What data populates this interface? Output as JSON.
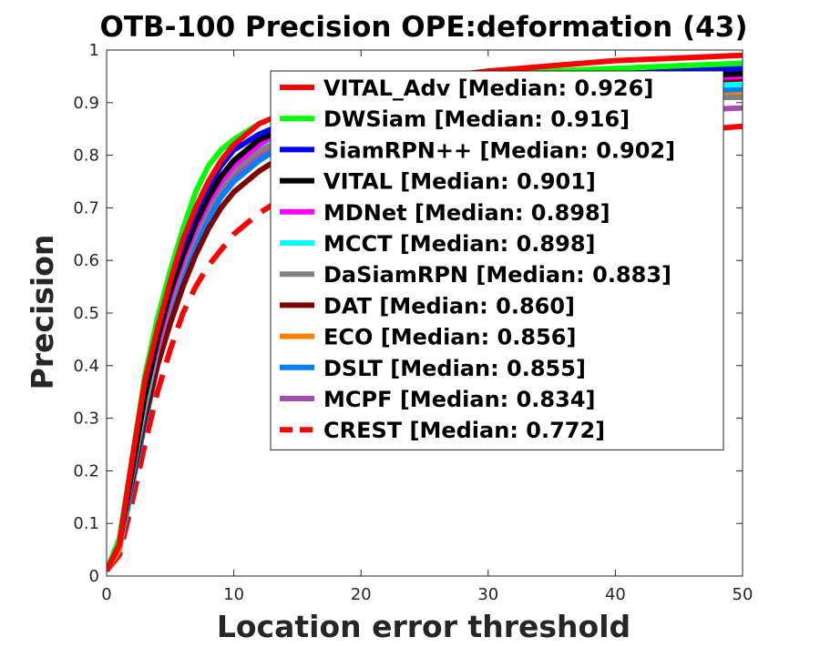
{
  "chart_data": {
    "type": "line",
    "title": "OTB-100 Precision OPE:deformation (43)",
    "xlabel": "Location error threshold",
    "ylabel": "Precision",
    "xlim": [
      0,
      50
    ],
    "ylim": [
      0,
      1
    ],
    "xticks": [
      "0",
      "10",
      "20",
      "30",
      "40",
      "50"
    ],
    "yticks": [
      "0",
      "0.1",
      "0.2",
      "0.3",
      "0.4",
      "0.5",
      "0.6",
      "0.7",
      "0.8",
      "0.9",
      "1"
    ],
    "legend_position": "top-right",
    "x": [
      0,
      1,
      2,
      3,
      4,
      5,
      6,
      7,
      8,
      9,
      10,
      12,
      14,
      16,
      18,
      20,
      25,
      30,
      35,
      40,
      45,
      50
    ],
    "series": [
      {
        "name": "VITAL_Adv [Median: 0.926]",
        "color": "#ff0000",
        "style": "solid",
        "values": [
          0.01,
          0.06,
          0.22,
          0.37,
          0.47,
          0.56,
          0.64,
          0.7,
          0.75,
          0.79,
          0.82,
          0.86,
          0.88,
          0.9,
          0.91,
          0.92,
          0.945,
          0.96,
          0.97,
          0.98,
          0.985,
          0.99
        ]
      },
      {
        "name": "DWSiam [Median: 0.916]",
        "color": "#00ff00",
        "style": "solid",
        "values": [
          0.01,
          0.07,
          0.22,
          0.38,
          0.49,
          0.58,
          0.66,
          0.73,
          0.78,
          0.81,
          0.83,
          0.86,
          0.88,
          0.895,
          0.905,
          0.915,
          0.935,
          0.95,
          0.96,
          0.965,
          0.97,
          0.975
        ]
      },
      {
        "name": "SiamRPN++ [Median: 0.902]",
        "color": "#0000ff",
        "style": "solid",
        "values": [
          0.01,
          0.07,
          0.22,
          0.37,
          0.47,
          0.56,
          0.63,
          0.69,
          0.74,
          0.78,
          0.81,
          0.84,
          0.86,
          0.88,
          0.89,
          0.9,
          0.92,
          0.935,
          0.945,
          0.955,
          0.96,
          0.965
        ]
      },
      {
        "name": "VITAL [Median: 0.901]",
        "color": "#000000",
        "style": "solid",
        "values": [
          0.01,
          0.06,
          0.2,
          0.34,
          0.45,
          0.54,
          0.61,
          0.67,
          0.72,
          0.76,
          0.79,
          0.83,
          0.85,
          0.87,
          0.88,
          0.89,
          0.91,
          0.925,
          0.935,
          0.945,
          0.95,
          0.955
        ]
      },
      {
        "name": "MDNet [Median: 0.898]",
        "color": "#ff00ff",
        "style": "solid",
        "values": [
          0.01,
          0.06,
          0.2,
          0.34,
          0.44,
          0.53,
          0.6,
          0.66,
          0.71,
          0.75,
          0.78,
          0.82,
          0.85,
          0.87,
          0.88,
          0.89,
          0.91,
          0.92,
          0.93,
          0.94,
          0.945,
          0.95
        ]
      },
      {
        "name": "MCCT [Median: 0.898]",
        "color": "#00ffff",
        "style": "solid",
        "values": [
          0.01,
          0.06,
          0.2,
          0.33,
          0.44,
          0.53,
          0.6,
          0.66,
          0.71,
          0.75,
          0.78,
          0.82,
          0.84,
          0.86,
          0.875,
          0.885,
          0.9,
          0.91,
          0.92,
          0.925,
          0.93,
          0.935
        ]
      },
      {
        "name": "DaSiamRPN [Median: 0.883]",
        "color": "#808080",
        "style": "solid",
        "values": [
          0.01,
          0.06,
          0.19,
          0.32,
          0.43,
          0.52,
          0.59,
          0.65,
          0.7,
          0.74,
          0.77,
          0.81,
          0.83,
          0.85,
          0.86,
          0.87,
          0.88,
          0.89,
          0.9,
          0.905,
          0.91,
          0.91
        ]
      },
      {
        "name": "DAT [Median: 0.860]",
        "color": "#800000",
        "style": "solid",
        "values": [
          0.01,
          0.07,
          0.18,
          0.3,
          0.4,
          0.48,
          0.55,
          0.61,
          0.66,
          0.7,
          0.73,
          0.77,
          0.8,
          0.82,
          0.835,
          0.845,
          0.87,
          0.89,
          0.91,
          0.925,
          0.935,
          0.945
        ]
      },
      {
        "name": "ECO [Median: 0.856]",
        "color": "#ff8000",
        "style": "solid",
        "values": [
          0.01,
          0.05,
          0.19,
          0.32,
          0.43,
          0.52,
          0.59,
          0.65,
          0.7,
          0.74,
          0.77,
          0.81,
          0.83,
          0.845,
          0.855,
          0.865,
          0.88,
          0.89,
          0.9,
          0.905,
          0.91,
          0.915
        ]
      },
      {
        "name": "DSLT [Median: 0.855]",
        "color": "#0080ff",
        "style": "solid",
        "values": [
          0.01,
          0.05,
          0.17,
          0.29,
          0.4,
          0.49,
          0.57,
          0.63,
          0.68,
          0.72,
          0.75,
          0.79,
          0.82,
          0.84,
          0.855,
          0.865,
          0.885,
          0.9,
          0.91,
          0.915,
          0.92,
          0.925
        ]
      },
      {
        "name": "MCPF [Median: 0.834]",
        "color": "#a050b0",
        "style": "solid",
        "values": [
          0.01,
          0.06,
          0.19,
          0.32,
          0.43,
          0.52,
          0.59,
          0.65,
          0.7,
          0.73,
          0.76,
          0.8,
          0.82,
          0.835,
          0.845,
          0.855,
          0.865,
          0.87,
          0.875,
          0.88,
          0.885,
          0.89
        ]
      },
      {
        "name": "CREST [Median: 0.772]",
        "color": "#ff0000",
        "style": "dashed",
        "values": [
          0.01,
          0.04,
          0.14,
          0.25,
          0.35,
          0.43,
          0.5,
          0.55,
          0.59,
          0.62,
          0.65,
          0.69,
          0.72,
          0.74,
          0.76,
          0.77,
          0.79,
          0.81,
          0.82,
          0.835,
          0.845,
          0.855
        ]
      }
    ]
  }
}
